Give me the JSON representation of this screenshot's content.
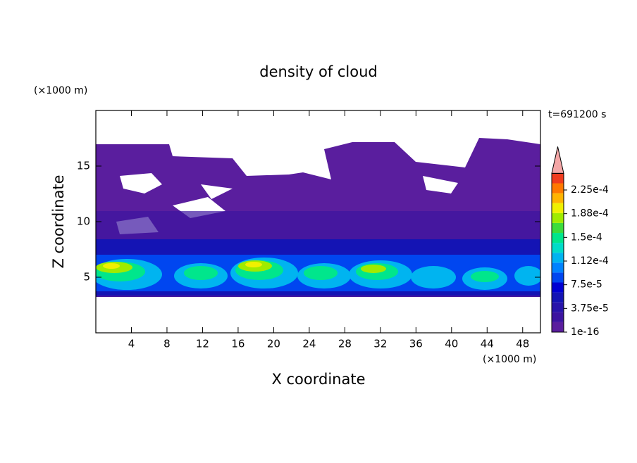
{
  "chart_data": {
    "type": "contour",
    "title": "density of cloud",
    "xlabel": "X coordinate",
    "ylabel": "Z coordinate",
    "xunit": "(×1000 m)",
    "yunit": "(×1000 m)",
    "annotation": "t=691200 s",
    "xlim": [
      0,
      50
    ],
    "xticks": [
      4,
      8,
      12,
      16,
      20,
      24,
      28,
      32,
      36,
      40,
      44,
      48
    ],
    "ylim": [
      0,
      20
    ],
    "yticks": [
      5,
      10,
      15
    ],
    "colorbar": {
      "ticks": [
        {
          "value": 1e-16,
          "label": "1e-16"
        },
        {
          "value": 3.75e-05,
          "label": "3.75e-5"
        },
        {
          "value": 7.5e-05,
          "label": "7.5e-5"
        },
        {
          "value": 0.000112,
          "label": "1.12e-4"
        },
        {
          "value": 0.00015,
          "label": "1.5e-4"
        },
        {
          "value": 0.000188,
          "label": "1.88e-4"
        },
        {
          "value": 0.000225,
          "label": "2.25e-4"
        }
      ],
      "colors": [
        "#5a1e9e",
        "#3c14a0",
        "#2814aa",
        "#1414b4",
        "#0000d2",
        "#0046f0",
        "#0082ff",
        "#00b4f0",
        "#00dcc8",
        "#00e68c",
        "#3cdc3c",
        "#a0eb00",
        "#f0f000",
        "#ffb400",
        "#ff7800",
        "#f03c1e"
      ],
      "extend_color": "#f4a6a6"
    }
  }
}
